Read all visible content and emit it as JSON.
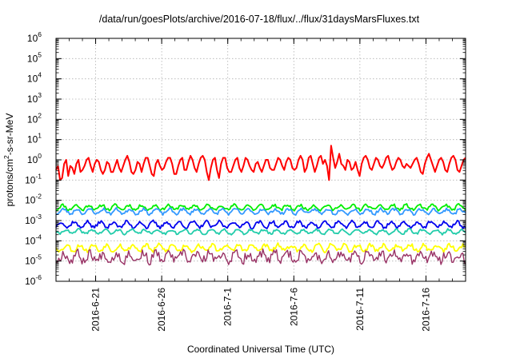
{
  "chart_data": {
    "type": "line",
    "title": "/data/run/goesPlots/archive/2016-07-18/flux/../flux/31daysMarsFluxes.txt",
    "xlabel": "Coordinated Universal Time (UTC)",
    "ylabel_prefix": "protons/cm",
    "ylabel_exp": "2",
    "ylabel_suffix": "-s-sr-MeV",
    "yscale": "log",
    "ylim": [
      1e-06,
      1000000.0
    ],
    "xlim": [
      "2016-06-18",
      "2016-07-19"
    ],
    "grid": true,
    "xticks": [
      "2016-6-21",
      "2016-6-26",
      "2016-7-1",
      "2016-7-6",
      "2016-7-11",
      "2016-7-16"
    ],
    "yticks": [
      {
        "base": "10",
        "exp": "6"
      },
      {
        "base": "10",
        "exp": "5"
      },
      {
        "base": "10",
        "exp": "4"
      },
      {
        "base": "10",
        "exp": "3"
      },
      {
        "base": "10",
        "exp": "2"
      },
      {
        "base": "10",
        "exp": "1"
      },
      {
        "base": "10",
        "exp": "0"
      },
      {
        "base": "10",
        "exp": "-1"
      },
      {
        "base": "10",
        "exp": "-2"
      },
      {
        "base": "10",
        "exp": "-3"
      },
      {
        "base": "10",
        "exp": "-4"
      },
      {
        "base": "10",
        "exp": "-5"
      },
      {
        "base": "10",
        "exp": "-6"
      }
    ],
    "series": [
      {
        "color": "#ff0000",
        "width": 2.0,
        "x_start": "2016-06-18",
        "x_end": "2016-07-19",
        "log10_values": [
          -0.5,
          -0.3,
          -1.0,
          -0.9,
          -0.2,
          0.0,
          -0.8,
          -0.3,
          -0.4,
          -0.7,
          -0.2,
          0.0,
          -0.6,
          -0.5,
          -0.3,
          0.0,
          0.1,
          -0.3,
          -0.6,
          -0.2,
          0.0,
          -0.1,
          -0.5,
          -0.7,
          -0.5,
          -0.1,
          -0.2,
          -0.6,
          -0.6,
          -0.3,
          0.0,
          -0.4,
          -0.6,
          -0.3,
          0.0,
          0.2,
          -0.1,
          -0.6,
          -0.7,
          -0.5,
          -0.1,
          -0.2,
          -0.6,
          -0.2,
          0.1,
          0.1,
          -0.3,
          -0.7,
          -0.8,
          -0.2,
          0.0,
          -0.3,
          -0.5,
          -0.4,
          -0.1,
          0.1,
          0.1,
          -0.2,
          -0.7,
          -0.7,
          -0.3,
          0.0,
          0.1,
          -0.5,
          -0.5,
          -0.1,
          0.2,
          0.0,
          -0.4,
          -0.6,
          -0.2,
          0.1,
          0.2,
          0.0,
          -0.6,
          -1.0,
          -0.4,
          0.0,
          0.1,
          -0.5,
          -0.9,
          -0.2,
          0.1,
          0.1,
          -0.4,
          -0.6,
          -0.6,
          -0.3,
          0.0,
          0.1,
          -0.4,
          -0.6,
          -0.3,
          0.1,
          0.0,
          -0.3,
          -0.5,
          -0.6,
          -0.2,
          -0.1,
          -0.4,
          -0.6,
          -0.3,
          0.0,
          0.0,
          -0.4,
          -0.5,
          -0.5,
          -0.2,
          0.1,
          0.0,
          -0.3,
          -0.5,
          -0.1,
          0.1,
          0.0,
          -0.4,
          -0.5,
          -0.4,
          0.0,
          0.2,
          0.0,
          -0.6,
          -0.4,
          0.1,
          0.2,
          -0.2,
          -0.6,
          -0.3,
          0.1,
          0.2,
          -0.2,
          0.0,
          -0.3,
          -1.0,
          0.7,
          0.1,
          -0.4,
          -0.1,
          0.3,
          -0.2,
          -0.3,
          -0.5,
          0.0,
          -0.1,
          -0.5,
          -0.4,
          -0.1,
          -0.5,
          -0.8,
          -0.2,
          0.1,
          0.2,
          0.0,
          -0.4,
          -0.5,
          -0.2,
          0.1,
          0.0,
          -0.3,
          -0.4,
          -0.2,
          0.1,
          0.2,
          -0.2,
          -0.5,
          -0.4,
          -0.1,
          0.1,
          0.0,
          -0.3,
          -0.4,
          -0.2,
          -0.3,
          -0.4,
          -0.2,
          0.0,
          0.1,
          -0.2,
          -0.6,
          -0.7,
          -0.2,
          0.1,
          0.3,
          0.0,
          -0.3,
          -0.6,
          -0.3,
          0.0,
          0.1,
          -0.1,
          -0.5,
          -0.6,
          -0.2,
          0.1,
          0.2,
          0.0,
          -0.5,
          -0.6,
          -0.3,
          0.0,
          0.1
        ]
      },
      {
        "color": "#00ee00",
        "width": 1.8,
        "x_start": "2016-06-18",
        "x_end": "2016-07-19",
        "base": -2.35,
        "amp": 0.12,
        "noise": 0.07,
        "seed": 11
      },
      {
        "color": "#3399ff",
        "width": 1.8,
        "x_start": "2016-06-18",
        "x_end": "2016-07-19",
        "base": -2.55,
        "amp": 0.12,
        "noise": 0.07,
        "seed": 23
      },
      {
        "color": "#0000ee",
        "width": 1.8,
        "x_start": "2016-06-18",
        "x_end": "2016-07-19",
        "base": -3.2,
        "amp": 0.15,
        "noise": 0.08,
        "seed": 37
      },
      {
        "color": "#22ccaa",
        "width": 1.8,
        "x_start": "2016-06-18",
        "x_end": "2016-07-19",
        "base": -3.55,
        "amp": 0.1,
        "noise": 0.06,
        "seed": 41
      },
      {
        "color": "#ffff00",
        "width": 1.8,
        "x_start": "2016-06-18",
        "x_end": "2016-07-19",
        "base": -4.35,
        "amp": 0.15,
        "noise": 0.1,
        "seed": 53
      },
      {
        "color": "#993366",
        "width": 1.4,
        "x_start": "2016-06-18",
        "x_end": "2016-07-19",
        "base": -4.8,
        "amp": 0.2,
        "noise": 0.22,
        "seed": 67
      }
    ]
  }
}
